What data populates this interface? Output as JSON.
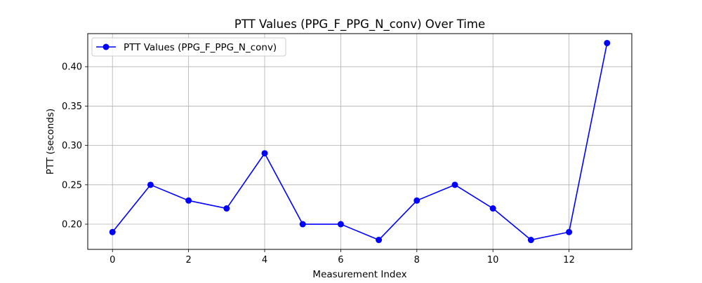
{
  "chart_data": {
    "type": "line",
    "title": "PTT Values (PPG_F_PPG_N_conv) Over Time",
    "xlabel": "Measurement Index",
    "ylabel": "PTT (seconds)",
    "xlim": [
      -0.65,
      13.65
    ],
    "ylim": [
      0.168,
      0.442
    ],
    "x_ticks": [
      0,
      2,
      4,
      6,
      8,
      10,
      12
    ],
    "x_tick_labels": [
      "0",
      "2",
      "4",
      "6",
      "8",
      "10",
      "12"
    ],
    "y_ticks": [
      0.2,
      0.25,
      0.3,
      0.35,
      0.4
    ],
    "y_tick_labels": [
      "0.20",
      "0.25",
      "0.30",
      "0.35",
      "0.40"
    ],
    "grid": true,
    "legend_position": "top-left",
    "series": [
      {
        "name": "PTT Values (PPG_F_PPG_N_conv)",
        "color": "#0000ff",
        "marker": "circle",
        "x": [
          0,
          1,
          2,
          3,
          4,
          5,
          6,
          7,
          8,
          9,
          10,
          11,
          12,
          13
        ],
        "values": [
          0.19,
          0.25,
          0.23,
          0.22,
          0.29,
          0.2,
          0.2,
          0.18,
          0.23,
          0.25,
          0.22,
          0.18,
          0.19,
          0.43
        ]
      }
    ]
  }
}
